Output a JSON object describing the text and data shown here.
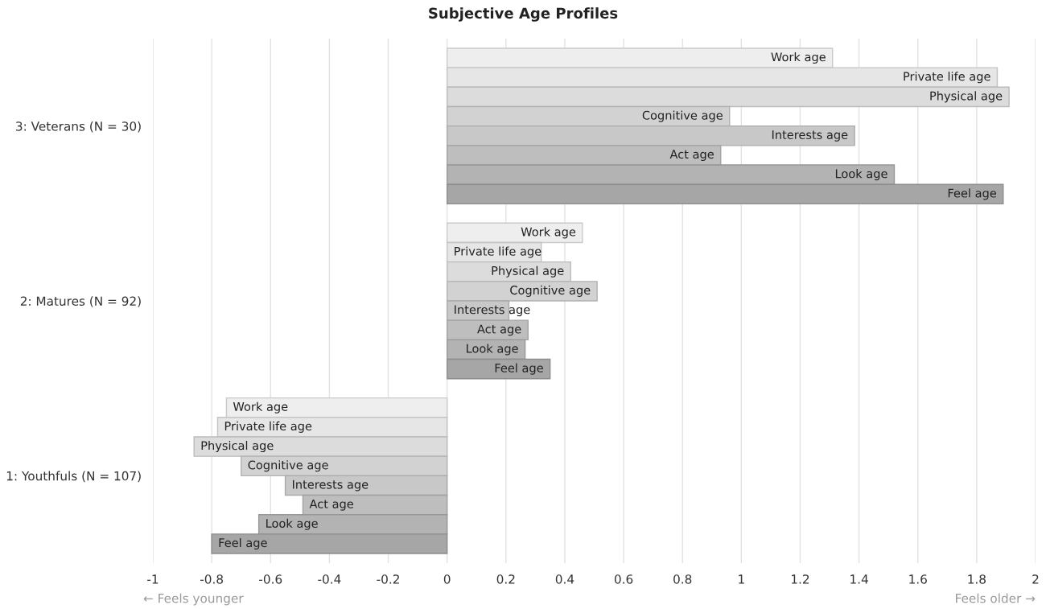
{
  "chart_data": {
    "type": "bar",
    "orientation": "horizontal",
    "title": "Subjective Age Profiles",
    "categories": [
      "3: Veterans (N = 30)",
      "2: Matures (N = 92)",
      "1: Youthfuls (N = 107)"
    ],
    "series": [
      {
        "name": "Work age",
        "color": "#eeeeee",
        "values": [
          1.31,
          0.46,
          -0.75
        ]
      },
      {
        "name": "Private life age",
        "color": "#e6e6e6",
        "values": [
          1.87,
          0.32,
          -0.78
        ]
      },
      {
        "name": "Physical age",
        "color": "#dcdcdc",
        "values": [
          1.91,
          0.42,
          -0.86
        ]
      },
      {
        "name": "Cognitive age",
        "color": "#d2d2d2",
        "values": [
          0.96,
          0.51,
          -0.7
        ]
      },
      {
        "name": "Interests age",
        "color": "#c8c8c8",
        "values": [
          1.385,
          0.21,
          -0.55
        ]
      },
      {
        "name": "Act age",
        "color": "#bebebe",
        "values": [
          0.93,
          0.275,
          -0.49
        ]
      },
      {
        "name": "Look age",
        "color": "#b3b3b3",
        "values": [
          1.52,
          0.265,
          -0.64
        ]
      },
      {
        "name": "Feel age",
        "color": "#a6a6a6",
        "values": [
          1.89,
          0.35,
          -0.8
        ]
      }
    ],
    "xlim": [
      -1,
      2
    ],
    "xticks": [
      -1,
      -0.8,
      -0.6,
      -0.4,
      -0.2,
      0,
      0.2,
      0.4,
      0.6,
      0.8,
      1,
      1.2,
      1.4,
      1.6,
      1.8,
      2
    ],
    "grid": "x",
    "legend": false,
    "annotations": [
      "← Feels younger",
      "Feels older →"
    ]
  }
}
